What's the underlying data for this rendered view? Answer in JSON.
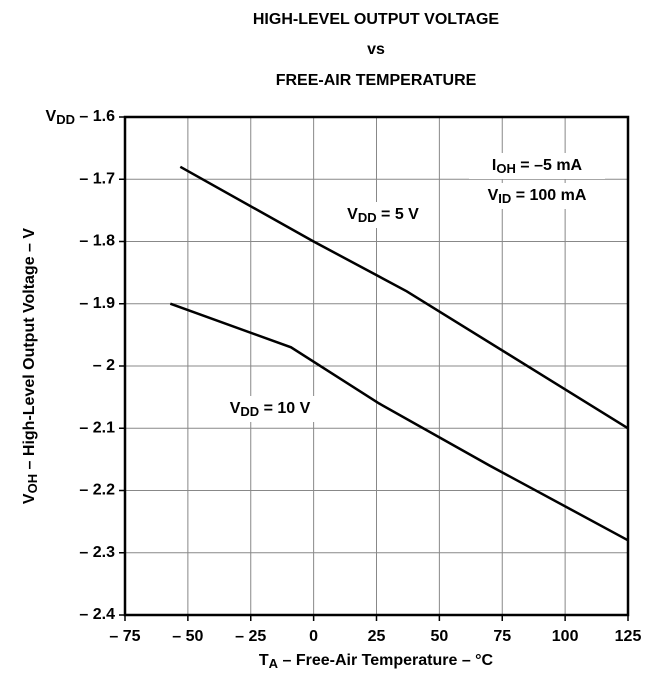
{
  "chart_data": {
    "type": "line",
    "title": [
      "HIGH-LEVEL OUTPUT VOLTAGE",
      "vs",
      "FREE-AIR TEMPERATURE"
    ],
    "x_label": "TA – Free-Air Temperature – °C",
    "y_label": "VOH – High-Level Output Voltage – V",
    "xlim": [
      -75,
      125
    ],
    "xticks": [
      {
        "value": -75,
        "label": "– 75"
      },
      {
        "value": -50,
        "label": "– 50"
      },
      {
        "value": -25,
        "label": "– 25"
      },
      0,
      25,
      50,
      75,
      100,
      125
    ],
    "ylim": [
      -2.4,
      -1.6
    ],
    "yticks": [
      {
        "value": -1.6,
        "label": "VDD – 1.6"
      },
      {
        "value": -1.7,
        "label": "– 1.7"
      },
      {
        "value": -1.8,
        "label": "– 1.8"
      },
      {
        "value": -1.9,
        "label": "– 1.9"
      },
      {
        "value": -2,
        "label": "– 2"
      },
      {
        "value": -2.1,
        "label": "– 2.1"
      },
      {
        "value": -2.2,
        "label": "– 2.2"
      },
      {
        "value": -2.3,
        "label": "– 2.3"
      },
      {
        "value": -2.4,
        "label": "– 2.4"
      }
    ],
    "grid": true,
    "series": [
      {
        "name": "VDD = 5 V",
        "color": "#000000",
        "x": [
          -53,
          0,
          37,
          125
        ],
        "values": [
          -1.68,
          -1.8,
          -1.88,
          -2.1
        ]
      },
      {
        "name": "VDD = 10 V",
        "color": "#000000",
        "x": [
          -57,
          -9,
          26,
          70,
          125
        ],
        "values": [
          -1.9,
          -1.97,
          -2.06,
          -2.16,
          -2.28
        ]
      }
    ],
    "annotations": [
      "IOH = –5 mA",
      "VID = 100 mA"
    ]
  }
}
